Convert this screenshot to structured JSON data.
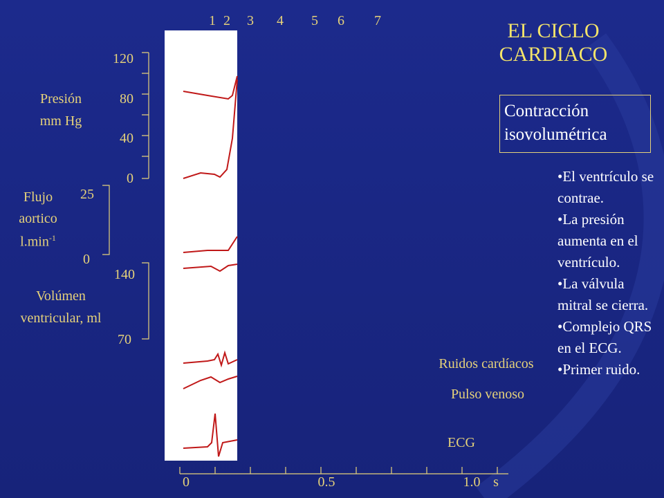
{
  "title": {
    "lines": [
      "EL CICLO",
      "CARDIACO"
    ]
  },
  "phase_numbers": [
    "1",
    "2",
    "3",
    "4",
    "5",
    "6",
    "7"
  ],
  "box": {
    "lines": [
      "Contracción",
      "isovolumétrica"
    ]
  },
  "bullets": [
    "El ventrículo se contrae.",
    "La presión aumenta en el ventrículo.",
    "La válvula mitral se cierra.",
    "Complejo QRS en el ECG.",
    "Primer ruido."
  ],
  "pressure": {
    "label": [
      "Presión",
      "mm Hg"
    ],
    "ticks": [
      "120",
      "80",
      "40",
      "0"
    ]
  },
  "flow": {
    "label": [
      "Flujo",
      "aortico",
      "l.min"
    ],
    "superscript": "-1",
    "ticks": [
      "25",
      "0"
    ]
  },
  "volume": {
    "label": [
      "Volúmen",
      "ventricular, ml"
    ],
    "ticks": [
      "140",
      "70"
    ]
  },
  "traces": {
    "sounds": "Ruidos cardíacos",
    "venous_pulse": "Pulso venoso",
    "ecg": "ECG"
  },
  "time_axis": {
    "ticks": [
      "0",
      "0.5",
      "1.0"
    ],
    "unit": "s"
  }
}
